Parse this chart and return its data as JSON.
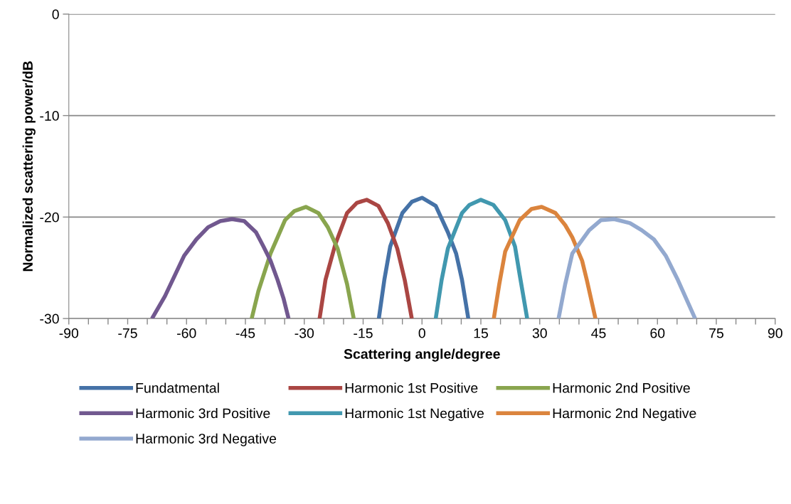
{
  "chart_data": {
    "type": "line",
    "xlabel": "Scattering angle/degree",
    "ylabel": "Normalized scattering power/dB",
    "xlim": [
      -90,
      90
    ],
    "ylim": [
      -30,
      0
    ],
    "xticks": [
      -90,
      {
        "value": -85,
        "label": null
      },
      {
        "value": -80,
        "label": null
      },
      -75,
      {
        "value": -70,
        "label": null
      },
      {
        "value": -65,
        "label": null
      },
      -60,
      {
        "value": -55,
        "label": null
      },
      {
        "value": -50,
        "label": null
      },
      -45,
      {
        "value": -40,
        "label": null
      },
      {
        "value": -35,
        "label": null
      },
      -30,
      {
        "value": -25,
        "label": null
      },
      {
        "value": -20,
        "label": null
      },
      -15,
      {
        "value": -10,
        "label": null
      },
      {
        "value": -5,
        "label": null
      },
      0,
      {
        "value": 5,
        "label": null
      },
      {
        "value": 10,
        "label": null
      },
      15,
      {
        "value": 20,
        "label": null
      },
      {
        "value": 25,
        "label": null
      },
      30,
      {
        "value": 35,
        "label": null
      },
      {
        "value": 40,
        "label": null
      },
      45,
      {
        "value": 50,
        "label": null
      },
      {
        "value": 55,
        "label": null
      },
      60,
      {
        "value": 65,
        "label": null
      },
      {
        "value": 70,
        "label": null
      },
      75,
      {
        "value": 80,
        "label": null
      },
      {
        "value": 85,
        "label": null
      },
      90
    ],
    "yticks": [
      -30,
      -20,
      -10,
      0
    ],
    "grid": "y",
    "legend": "bottom",
    "marker": "none",
    "line_style": "solid",
    "series": [
      {
        "name": "Fundatmental",
        "color": "#4572a7",
        "x": [
          -11.0,
          -9.6,
          -8.1,
          -5.0,
          -2.6,
          0,
          3.5,
          6.6,
          8.7,
          10.2,
          11.8
        ],
        "values": [
          -30,
          -26.2,
          -22.9,
          -19.6,
          -18.5,
          -18.1,
          -18.9,
          -21.5,
          -23.6,
          -26.2,
          -30
        ]
      },
      {
        "name": "Harmonic 1st Positive",
        "color": "#aa4643",
        "x": [
          -26.1,
          -24.6,
          -22.1,
          -19.1,
          -16.6,
          -14.1,
          -11.1,
          -8.7,
          -6.3,
          -4.4,
          -2.6
        ],
        "values": [
          -30,
          -26.2,
          -22.7,
          -19.6,
          -18.6,
          -18.3,
          -18.9,
          -20.6,
          -23.1,
          -26.2,
          -30
        ]
      },
      {
        "name": "Harmonic 2nd Positive",
        "color": "#89a54e",
        "x": [
          -43.4,
          -41.7,
          -38.6,
          -36.8,
          -34.9,
          -32.5,
          -29.6,
          -26.4,
          -24.0,
          -21.5,
          -19.1,
          -17.4
        ],
        "values": [
          -30,
          -27.3,
          -23.6,
          -22.0,
          -20.3,
          -19.4,
          -19.0,
          -19.6,
          -21.0,
          -23.1,
          -26.6,
          -30
        ]
      },
      {
        "name": "Harmonic 3rd Positive",
        "color": "#71588f",
        "x": [
          -68.8,
          -65.5,
          -60.6,
          -57.5,
          -54.5,
          -51.4,
          -48.4,
          -45.3,
          -42.3,
          -40.4,
          -38.6,
          -36.8,
          -35.3,
          -34.0
        ],
        "values": [
          -30,
          -27.8,
          -23.8,
          -22.2,
          -21.0,
          -20.4,
          -20.2,
          -20.4,
          -21.5,
          -22.9,
          -24.3,
          -26.2,
          -28.0,
          -30
        ]
      },
      {
        "name": "Harmonic 1st Negative",
        "color": "#4198af",
        "x": [
          3.5,
          5.0,
          6.6,
          10.2,
          12.1,
          15.0,
          18.2,
          21.2,
          23.7,
          24.9,
          26.8
        ],
        "values": [
          -30,
          -26.2,
          -23.1,
          -19.6,
          -18.8,
          -18.3,
          -18.8,
          -20.3,
          -22.9,
          -25.7,
          -30
        ]
      },
      {
        "name": "Harmonic 2nd Negative",
        "color": "#db843d",
        "x": [
          18.3,
          19.7,
          21.2,
          24.9,
          27.9,
          30.5,
          34.0,
          36.5,
          38.3,
          40.8,
          42.0,
          44.2
        ],
        "values": [
          -30,
          -26.6,
          -23.4,
          -20.3,
          -19.2,
          -19.0,
          -19.6,
          -20.8,
          -22.0,
          -24.3,
          -26.2,
          -30
        ]
      },
      {
        "name": "Harmonic 3rd Negative",
        "color": "#93a9cf",
        "x": [
          34.8,
          36.5,
          38.3,
          42.6,
          45.6,
          49.0,
          53.0,
          56.0,
          59.1,
          62.1,
          65.2,
          69.6
        ],
        "values": [
          -30,
          -26.6,
          -23.6,
          -21.3,
          -20.3,
          -20.2,
          -20.6,
          -21.3,
          -22.2,
          -23.8,
          -26.2,
          -30
        ]
      }
    ]
  }
}
